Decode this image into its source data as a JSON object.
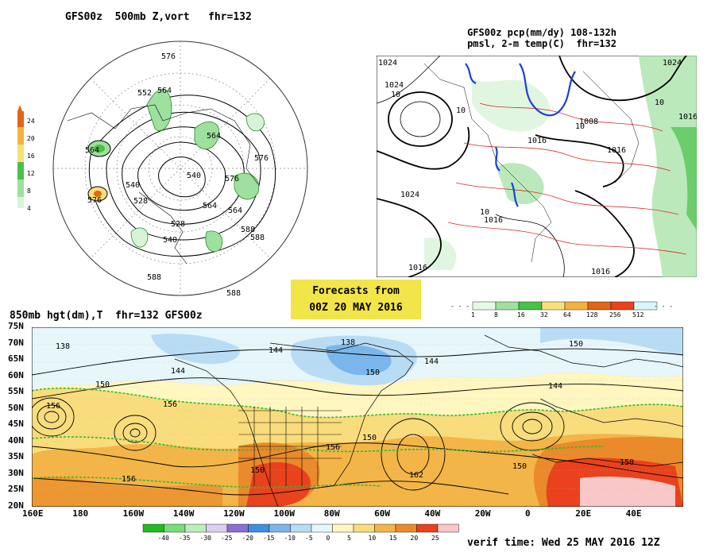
{
  "panels": {
    "vort": {
      "title": "GFS00z  500mb Z,vort   fhr=132",
      "colorbar": [
        "4",
        "8",
        "12",
        "16",
        "20",
        "24"
      ],
      "contour_labels": [
        "576",
        "552",
        "564",
        "540",
        "528",
        "564",
        "576",
        "564",
        "576",
        "528",
        "540",
        "588",
        "540",
        "564",
        "576",
        "564",
        "588",
        "588",
        "588"
      ]
    },
    "precip": {
      "title_line1": "GFS00z pcp(mm/dy) 108-132h",
      "title_line2": "pmsl, 2-m temp(C)  fhr=132",
      "labels": [
        "1024",
        "10",
        "10",
        "1016",
        "1008",
        "1016",
        "1024",
        "1016",
        "10",
        "1024",
        "1016",
        "1016",
        "10",
        "1016",
        "10",
        "1024"
      ],
      "colorbar": [
        "1",
        "8",
        "16",
        "32",
        "64",
        "128",
        "256",
        "512"
      ]
    },
    "t850": {
      "title": "850mb hgt(dm),T  fhr=132 GFS00z",
      "lat_labels": [
        "75N",
        "70N",
        "65N",
        "60N",
        "55N",
        "50N",
        "45N",
        "40N",
        "35N",
        "30N",
        "25N",
        "20N"
      ],
      "lon_labels": [
        "160E",
        "180",
        "160W",
        "140W",
        "120W",
        "100W",
        "80W",
        "60W",
        "40W",
        "20W",
        "0",
        "20E",
        "40E"
      ],
      "contour_labels": [
        "138",
        "144",
        "138",
        "144",
        "144",
        "150",
        "144",
        "150",
        "156",
        "156",
        "150",
        "156",
        "150",
        "162",
        "150",
        "150",
        "156",
        "150"
      ],
      "colorbar": [
        "-40",
        "-35",
        "-30",
        "-25",
        "-20",
        "-15",
        "-10",
        "-5",
        "0",
        "5",
        "10",
        "15",
        "20",
        "25"
      ],
      "colorbar_colors": [
        "#22bb22",
        "#77dd77",
        "#bbeebb",
        "#dcd0f0",
        "#8a6fd8",
        "#3f8fe0",
        "#7ab6ec",
        "#b9dcf5",
        "#e6f6fb",
        "#fff6c0",
        "#f9dc7c",
        "#f3b547",
        "#ea8a2a",
        "#e9421c",
        "#f9c7c7"
      ],
      "verif_time": "verif time: Wed 25 MAY 2016 12Z"
    }
  },
  "forecast_box": {
    "line1": "Forecasts from",
    "line2": "00Z 20 MAY 2016"
  }
}
